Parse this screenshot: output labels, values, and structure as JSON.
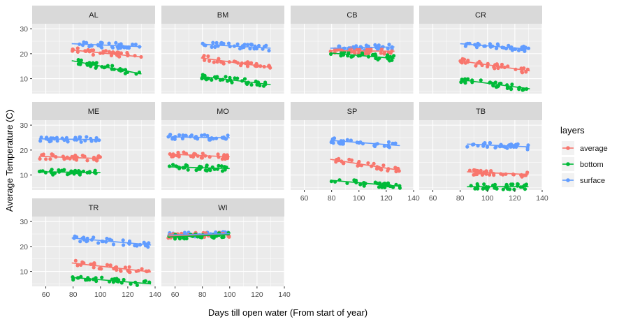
{
  "chart_data": {
    "type": "scatter",
    "xlabel": "Days till open water (From start of year)",
    "ylabel": "Average Temperature (C)",
    "xlim": [
      50,
      140
    ],
    "ylim": [
      4,
      32
    ],
    "x_ticks": [
      60,
      80,
      100,
      120,
      140
    ],
    "y_ticks": [
      10,
      20,
      30
    ],
    "grid": true,
    "legend": {
      "title": "layers",
      "placement": "right",
      "entries": [
        "average",
        "bottom",
        "surface"
      ]
    },
    "colors": {
      "average": "#F8766D",
      "bottom": "#00BA38",
      "surface": "#619CFF",
      "panel_bg": "#EBEBEB",
      "strip_bg": "#D9D9D9",
      "grid": "#FFFFFF"
    },
    "panels": [
      {
        "name": "AL",
        "x_range": [
          79,
          130
        ],
        "surface": [
          24.0,
          22.8
        ],
        "average": [
          21.5,
          18.7
        ],
        "bottom": [
          17.2,
          11.9
        ]
      },
      {
        "name": "BM",
        "x_range": [
          79,
          130
        ],
        "surface": [
          23.8,
          22.2
        ],
        "average": [
          18.3,
          14.5
        ],
        "bottom": [
          10.9,
          7.6
        ]
      },
      {
        "name": "CB",
        "x_range": [
          79,
          126
        ],
        "surface": [
          22.2,
          22.7
        ],
        "average": [
          21.2,
          21.0
        ],
        "bottom": [
          20.3,
          18.1
        ]
      },
      {
        "name": "CR",
        "x_range": [
          80,
          131
        ],
        "surface": [
          24.0,
          21.8
        ],
        "average": [
          17.1,
          13.1
        ],
        "bottom": [
          9.6,
          5.9
        ]
      },
      {
        "name": "ME",
        "x_range": [
          55,
          100
        ],
        "surface": [
          24.5,
          24.2
        ],
        "average": [
          17.5,
          16.6
        ],
        "bottom": [
          11.3,
          11.0
        ]
      },
      {
        "name": "MO",
        "x_range": [
          55,
          100
        ],
        "surface": [
          25.3,
          24.9
        ],
        "average": [
          18.4,
          17.3
        ],
        "bottom": [
          13.3,
          12.6
        ]
      },
      {
        "name": "SP",
        "x_range": [
          79,
          130
        ],
        "surface": [
          23.9,
          21.8
        ],
        "average": [
          16.3,
          11.9
        ],
        "bottom": [
          7.9,
          5.5
        ]
      },
      {
        "name": "TB",
        "x_range": [
          85,
          130
        ],
        "surface": [
          22.4,
          21.3
        ],
        "average": [
          11.3,
          10.2
        ],
        "bottom": [
          5.3,
          5.3
        ]
      },
      {
        "name": "TR",
        "x_range": [
          79,
          137
        ],
        "surface": [
          23.4,
          20.6
        ],
        "average": [
          13.4,
          9.8
        ],
        "bottom": [
          7.6,
          5.0
        ]
      },
      {
        "name": "WI",
        "x_range": [
          55,
          100
        ],
        "surface": [
          24.6,
          25.1
        ],
        "average": [
          24.2,
          24.7
        ],
        "bottom": [
          23.8,
          24.7
        ]
      }
    ]
  }
}
